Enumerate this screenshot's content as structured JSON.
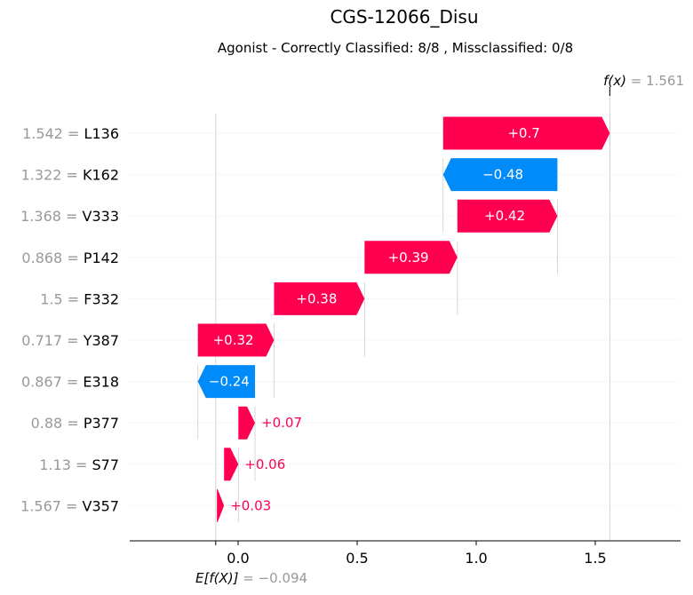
{
  "chart_data": {
    "type": "waterfall",
    "title": "CGS-12066_Disu",
    "subtitle": "Agonist - Correctly Classified: 8/8 , Missclassified: 0/8",
    "base_value": -0.094,
    "base_value_label": "−0.094",
    "output_value": 1.561,
    "output_value_label": "1.561",
    "fx_symbol": "f(x)",
    "ef_symbol": "E[f(X)]",
    "xlim": [
      -0.45,
      1.85
    ],
    "xticks": [
      0.0,
      0.5,
      1.0,
      1.5
    ],
    "xtick_labels": [
      "0.0",
      "0.5",
      "1.0",
      "1.5"
    ],
    "grid": "dotted horizontal guides",
    "features": [
      {
        "name": "L136",
        "value": "1.542",
        "contribution": 0.7,
        "label": "+0.7",
        "start": 0.861
      },
      {
        "name": "K162",
        "value": "1.322",
        "contribution": -0.48,
        "label": "−0.48",
        "start": 1.341
      },
      {
        "name": "V333",
        "value": "1.368",
        "contribution": 0.42,
        "label": "+0.42",
        "start": 0.921
      },
      {
        "name": "P142",
        "value": "0.868",
        "contribution": 0.39,
        "label": "+0.39",
        "start": 0.531
      },
      {
        "name": "F332",
        "value": "1.5",
        "contribution": 0.38,
        "label": "+0.38",
        "start": 0.151
      },
      {
        "name": "Y387",
        "value": "0.717",
        "contribution": 0.32,
        "label": "+0.32",
        "start": -0.169
      },
      {
        "name": "E318",
        "value": "0.867",
        "contribution": -0.24,
        "label": "−0.24",
        "start": 0.071
      },
      {
        "name": "P377",
        "value": "0.88",
        "contribution": 0.07,
        "label": "+0.07",
        "start": 0.001
      },
      {
        "name": "S77",
        "value": "1.13",
        "contribution": 0.06,
        "label": "+0.06",
        "start": -0.059
      },
      {
        "name": "V357",
        "value": "1.567",
        "contribution": 0.03,
        "label": "+0.03",
        "start": -0.089
      }
    ],
    "colors": {
      "positive": "#ff0051",
      "negative": "#008bfb",
      "value_text": "#999999",
      "guide": "#cccccc"
    }
  }
}
